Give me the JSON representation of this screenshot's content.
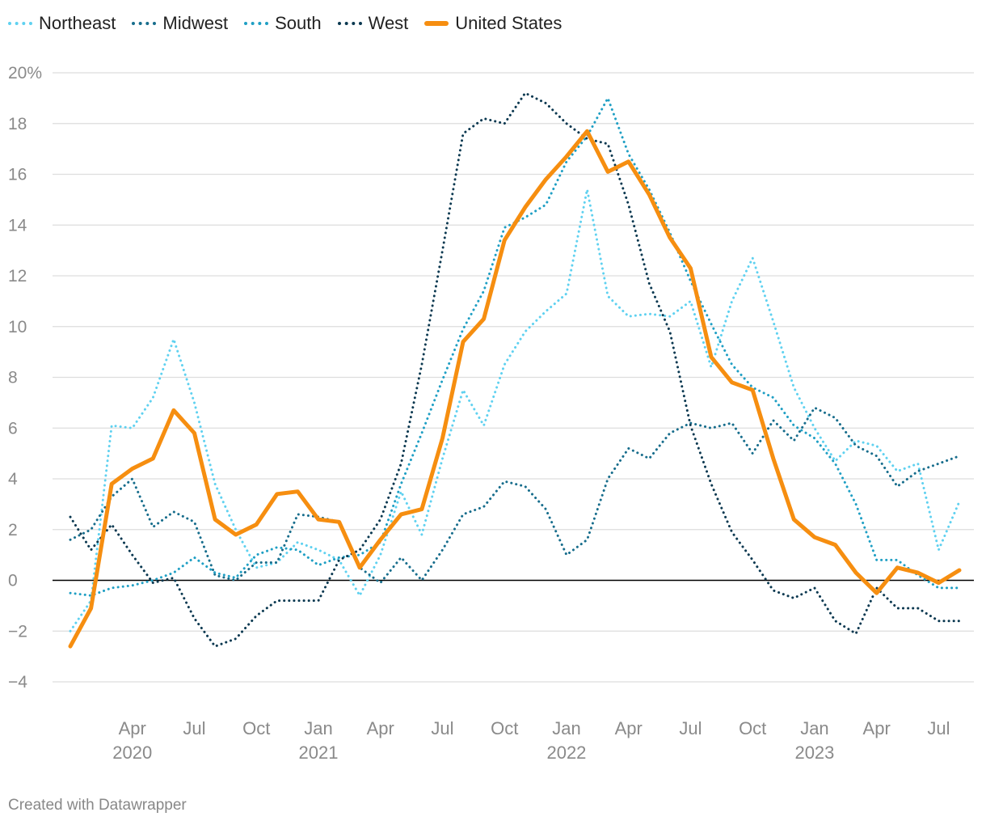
{
  "chart_data": {
    "type": "line",
    "title": "",
    "xlabel": "",
    "ylabel": "",
    "y_unit_suffix": "%",
    "ylim": [
      -4,
      20
    ],
    "y_ticks": [
      -4,
      -2,
      0,
      2,
      4,
      6,
      8,
      10,
      12,
      14,
      16,
      18,
      20
    ],
    "y_tick_labels": [
      "−4",
      "−2",
      "0",
      "2",
      "4",
      "6",
      "8",
      "10",
      "12",
      "14",
      "16",
      "18",
      "20%"
    ],
    "x_start": "2020-01",
    "x_end": "2023-09",
    "x_ticks": [
      {
        "index": 3,
        "label": "Apr",
        "year": "2020"
      },
      {
        "index": 6,
        "label": "Jul",
        "year": ""
      },
      {
        "index": 9,
        "label": "Oct",
        "year": ""
      },
      {
        "index": 12,
        "label": "Jan",
        "year": "2021"
      },
      {
        "index": 15,
        "label": "Apr",
        "year": ""
      },
      {
        "index": 18,
        "label": "Jul",
        "year": ""
      },
      {
        "index": 21,
        "label": "Oct",
        "year": ""
      },
      {
        "index": 24,
        "label": "Jan",
        "year": "2022"
      },
      {
        "index": 27,
        "label": "Apr",
        "year": ""
      },
      {
        "index": 30,
        "label": "Jul",
        "year": ""
      },
      {
        "index": 33,
        "label": "Oct",
        "year": ""
      },
      {
        "index": 36,
        "label": "Jan",
        "year": "2023"
      },
      {
        "index": 39,
        "label": "Apr",
        "year": ""
      },
      {
        "index": 42,
        "label": "Jul",
        "year": ""
      }
    ],
    "series": [
      {
        "name": "Northeast",
        "color": "#5fd1f0",
        "style": "dotted",
        "values": [
          -2.0,
          -0.8,
          6.1,
          6.0,
          7.2,
          9.5,
          7.0,
          3.8,
          2.0,
          0.5,
          0.7,
          1.5,
          1.2,
          0.8,
          -0.6,
          1.0,
          3.5,
          1.8,
          4.8,
          7.5,
          6.1,
          8.5,
          9.8,
          10.6,
          11.3,
          15.4,
          11.2,
          10.4,
          10.5,
          10.4,
          11.0,
          8.4,
          11.0,
          12.7,
          10.2,
          7.6,
          6.0,
          4.7,
          5.5,
          5.3,
          4.3,
          4.6,
          1.2,
          3.1
        ]
      },
      {
        "name": "Midwest",
        "color": "#176d8c",
        "style": "dotted",
        "values": [
          1.6,
          2.0,
          3.3,
          4.0,
          2.1,
          2.7,
          2.3,
          0.2,
          0.0,
          0.7,
          0.7,
          2.6,
          2.5,
          2.3,
          0.5,
          -0.1,
          0.9,
          0.0,
          1.2,
          2.6,
          2.9,
          3.9,
          3.7,
          2.8,
          1.0,
          1.6,
          4.0,
          5.2,
          4.8,
          5.8,
          6.2,
          6.0,
          6.2,
          5.0,
          6.3,
          5.5,
          6.8,
          6.4,
          5.3,
          4.9,
          3.7,
          4.3,
          4.6,
          4.9
        ]
      },
      {
        "name": "South",
        "color": "#1f9fc4",
        "style": "dotted",
        "values": [
          -0.5,
          -0.6,
          -0.3,
          -0.2,
          0.0,
          0.3,
          0.9,
          0.3,
          0.1,
          1.0,
          1.3,
          1.2,
          0.6,
          0.9,
          1.0,
          1.5,
          3.8,
          5.8,
          7.9,
          9.9,
          11.4,
          13.9,
          14.3,
          14.8,
          16.5,
          17.5,
          19.0,
          16.8,
          15.4,
          13.7,
          11.8,
          10.1,
          8.5,
          7.6,
          7.2,
          6.1,
          5.6,
          4.6,
          3.0,
          0.8,
          0.8,
          0.2,
          -0.3,
          -0.3
        ]
      },
      {
        "name": "West",
        "color": "#0a3850",
        "style": "dotted",
        "values": [
          2.5,
          1.2,
          2.2,
          1.0,
          -0.1,
          0.1,
          -1.5,
          -2.6,
          -2.3,
          -1.4,
          -0.8,
          -0.8,
          -0.8,
          0.8,
          1.2,
          2.4,
          4.6,
          8.5,
          13.0,
          17.6,
          18.2,
          18.0,
          19.2,
          18.8,
          18.0,
          17.4,
          17.2,
          14.8,
          11.7,
          9.8,
          6.1,
          3.8,
          1.9,
          0.8,
          -0.4,
          -0.7,
          -0.3,
          -1.6,
          -2.1,
          -0.3,
          -1.1,
          -1.1,
          -1.6,
          -1.6
        ]
      },
      {
        "name": "United States",
        "color": "#f68e10",
        "style": "solid",
        "values": [
          -2.6,
          -1.1,
          3.8,
          4.4,
          4.8,
          6.7,
          5.8,
          2.4,
          1.8,
          2.2,
          3.4,
          3.5,
          2.4,
          2.3,
          0.5,
          1.6,
          2.6,
          2.8,
          5.6,
          9.4,
          10.3,
          13.4,
          14.7,
          15.8,
          16.7,
          17.7,
          16.1,
          16.5,
          15.2,
          13.5,
          12.3,
          8.8,
          7.8,
          7.5,
          4.8,
          2.4,
          1.7,
          1.4,
          0.3,
          -0.5,
          0.5,
          0.3,
          -0.1,
          0.4
        ]
      }
    ]
  },
  "legend": {
    "items": [
      {
        "label": "Northeast",
        "color": "#5fd1f0",
        "style": "dotted"
      },
      {
        "label": "Midwest",
        "color": "#176d8c",
        "style": "dotted"
      },
      {
        "label": "South",
        "color": "#1f9fc4",
        "style": "dotted"
      },
      {
        "label": "West",
        "color": "#0a3850",
        "style": "dotted"
      },
      {
        "label": "United States",
        "color": "#f68e10",
        "style": "solid"
      }
    ]
  },
  "footer": {
    "credit": "Created with Datawrapper"
  }
}
